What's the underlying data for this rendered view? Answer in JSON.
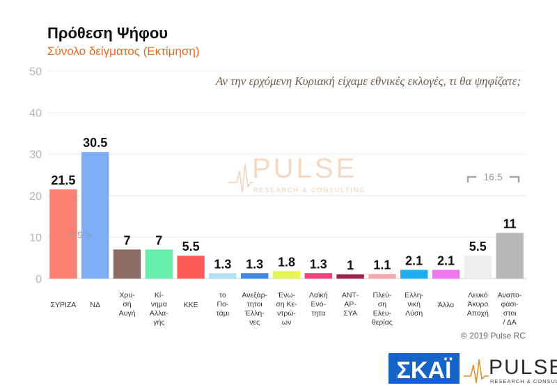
{
  "chart_data": {
    "type": "bar",
    "title": "Πρόθεση Ψήφου",
    "subtitle": "Σύνολο δείγματος   (Εκτίμηση)",
    "question": "Αν την ερχόμενη Κυριακή είχαμε εθνικές εκλογές, τι θα ψηφίζατε;",
    "ylim": [
      0,
      50
    ],
    "yticks": [
      0,
      10,
      20,
      30,
      40,
      50
    ],
    "grid": true,
    "categories": [
      [
        "ΣΥΡΙΖΑ"
      ],
      [
        "ΝΔ"
      ],
      [
        "Χρυ-",
        "σή",
        "Αυγή"
      ],
      [
        "Κί-",
        "νημα",
        "Αλλα-",
        "γής"
      ],
      [
        "ΚΚΕ"
      ],
      [
        "το",
        "Πο-",
        "τάμι"
      ],
      [
        "Ανεξάρ-",
        "τητοι",
        "Έλλη-",
        "νες"
      ],
      [
        "Ένω-",
        "ση Κε-",
        "ντρώ-",
        "ων"
      ],
      [
        "Λαϊκή",
        "Ενό-",
        "τητα"
      ],
      [
        "ΑΝΤ-",
        "ΑΡ-",
        "ΣΥΑ"
      ],
      [
        "Πλεύ-",
        "ση",
        "Ελευ-",
        "θερίας"
      ],
      [
        "Ελλη-",
        "νική",
        "Λύση"
      ],
      [
        "Άλλο"
      ],
      [
        "Λευκό",
        "Άκυρο",
        "Αποχή"
      ],
      [
        "Αναπο-",
        "φάσι-",
        "στοι",
        "/ ΔΑ"
      ]
    ],
    "values": [
      21.5,
      30.5,
      7,
      7,
      5.5,
      1.3,
      1.3,
      1.8,
      1.3,
      1,
      1.1,
      2.1,
      2.1,
      5.5,
      11
    ],
    "value_labels": [
      "21.5",
      "30.5",
      "7",
      "7",
      "5.5",
      "1.3",
      "1.3",
      "1.8",
      "1.3",
      "1",
      "1.1",
      "2.1",
      "2.1",
      "5.5",
      "11"
    ],
    "colors": [
      "#fa8072",
      "#7eadf5",
      "#8b6a62",
      "#66eeab",
      "#ff5a5a",
      "#aee2f8",
      "#3b86e6",
      "#e6f55a",
      "#f0417e",
      "#9e1f4a",
      "#f6a7ae",
      "#1cb0f0",
      "#f075f0",
      "#eeeeee",
      "#b8b8b8"
    ],
    "annotations": {
      "gap_label": "< 9 >",
      "bracket_label": "16.5"
    }
  },
  "watermark": {
    "name": "PULSE",
    "tagline": "RESEARCH & CONSULTING",
    "color": "#e8a878"
  },
  "copyright": "© 2019 Pulse RC",
  "logos": {
    "skai_text": "ΣΚΑΪ",
    "skai_color": "#1565c8",
    "pulse_text": "PULSE",
    "pulse_tagline": "RESEARCH & CONSULTING"
  }
}
